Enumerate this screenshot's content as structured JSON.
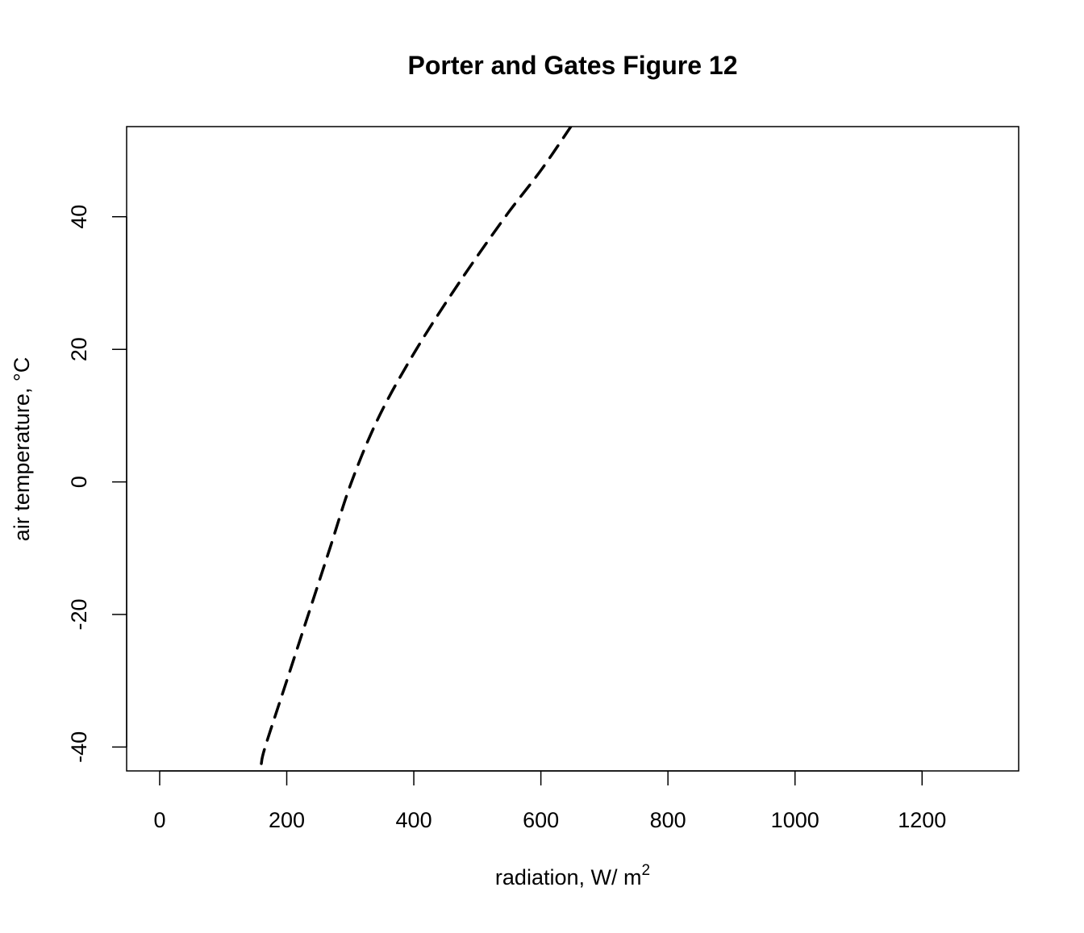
{
  "chart_data": {
    "type": "line",
    "title": "Porter and Gates Figure 12",
    "xlabel": "radiation, W/ m",
    "xlabel_superscript": "2",
    "ylabel": "air temperature, °C",
    "xlim": [
      -52,
      1352
    ],
    "ylim": [
      -43.6,
      53.6
    ],
    "xticks": [
      0,
      200,
      400,
      600,
      800,
      1000,
      1200
    ],
    "yticks": [
      -40,
      -20,
      0,
      20,
      40
    ],
    "grid": false,
    "series": [
      {
        "line_style": "dashed",
        "color": "#000000",
        "x": [
          160,
          166,
          200,
          234,
          268,
          302,
          346,
          404,
          471,
          544,
          600,
          650
        ],
        "y": [
          -42.5,
          -40,
          -30,
          -20,
          -10,
          0,
          10,
          20,
          30,
          40,
          47,
          54
        ]
      }
    ]
  }
}
